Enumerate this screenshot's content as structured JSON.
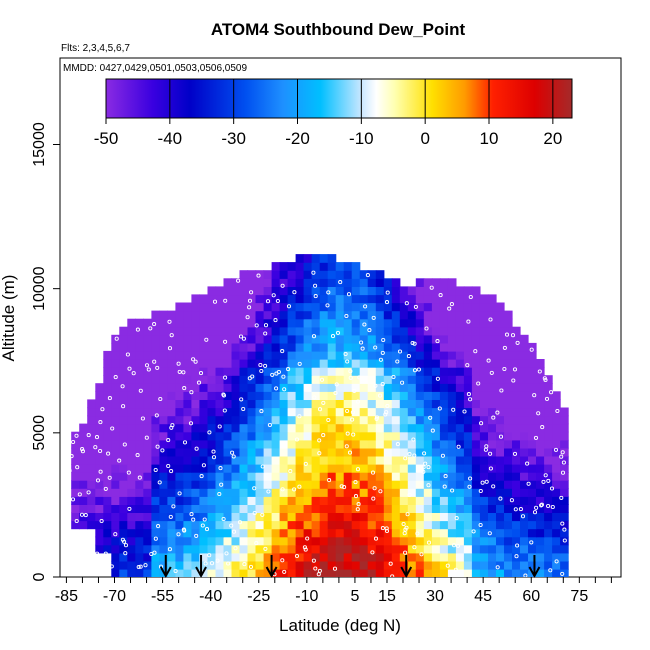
{
  "chart_data": {
    "type": "heatmap",
    "title": "ATOM4 Southbound Dew_Point",
    "subtitle_flights": "Flts: 2,3,4,5,6,7",
    "subtitle_dates": "MMDD: 0427,0429,0501,0503,0506,0509",
    "xlabel": "Latitude (deg N)",
    "ylabel": "Altitude (m)",
    "xlim": [
      -87,
      88
    ],
    "ylim": [
      0,
      18000
    ],
    "x_ticks": [
      -85,
      -70,
      -55,
      -40,
      -25,
      -10,
      5,
      15,
      30,
      45,
      60,
      75
    ],
    "y_ticks": [
      0,
      5000,
      10000,
      15000
    ],
    "colorbar": {
      "range": [
        -50,
        23
      ],
      "ticks": [
        -50,
        -40,
        -30,
        -20,
        -10,
        0,
        10,
        20
      ],
      "colors": [
        "#8a2be2",
        "#0000c8",
        "#1e90ff",
        "#00bfff",
        "#ffffff",
        "#ffff80",
        "#ffd700",
        "#ff8c00",
        "#ff0000",
        "#b22222"
      ]
    },
    "flight_markers_lat": [
      -54,
      -43,
      -21,
      21,
      61
    ],
    "grid": false,
    "legend": "colorbar top"
  }
}
